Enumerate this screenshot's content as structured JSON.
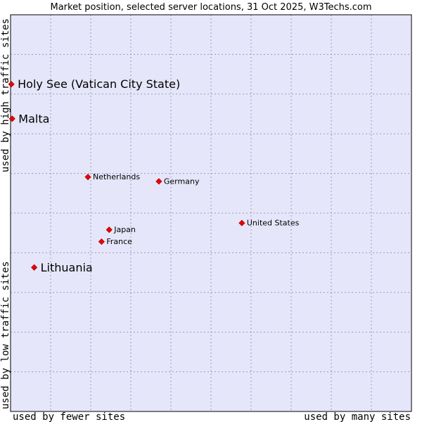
{
  "chart_data": {
    "type": "scatter",
    "title": "Market position, selected server locations, 31 Oct 2025, W3Techs.com",
    "xlabel_left": "used by fewer sites",
    "xlabel_right": "used by many sites",
    "ylabel_top": "used by high traffic sites",
    "ylabel_bottom": "used by low traffic sites",
    "xlim": [
      0,
      100
    ],
    "ylim": [
      0,
      100
    ],
    "grid": true,
    "colors": {
      "plot_background": "#e6e6fa",
      "grid": "#9999bb",
      "frame": "#000000",
      "marker": "#ee0000",
      "text": "#000000"
    },
    "points": [
      {
        "name": "Holy See (Vatican City State)",
        "x": 0.2,
        "y": 82.5,
        "highlight": true
      },
      {
        "name": "Malta",
        "x": 0.4,
        "y": 73.8,
        "highlight": true
      },
      {
        "name": "Netherlands",
        "x": 19.3,
        "y": 59.1,
        "highlight": false
      },
      {
        "name": "Germany",
        "x": 37.0,
        "y": 58.0,
        "highlight": false
      },
      {
        "name": "United States",
        "x": 57.7,
        "y": 47.5,
        "highlight": false
      },
      {
        "name": "Japan",
        "x": 24.6,
        "y": 45.8,
        "highlight": false
      },
      {
        "name": "France",
        "x": 22.7,
        "y": 42.8,
        "highlight": false
      },
      {
        "name": "Lithuania",
        "x": 5.9,
        "y": 36.3,
        "highlight": true
      }
    ]
  }
}
